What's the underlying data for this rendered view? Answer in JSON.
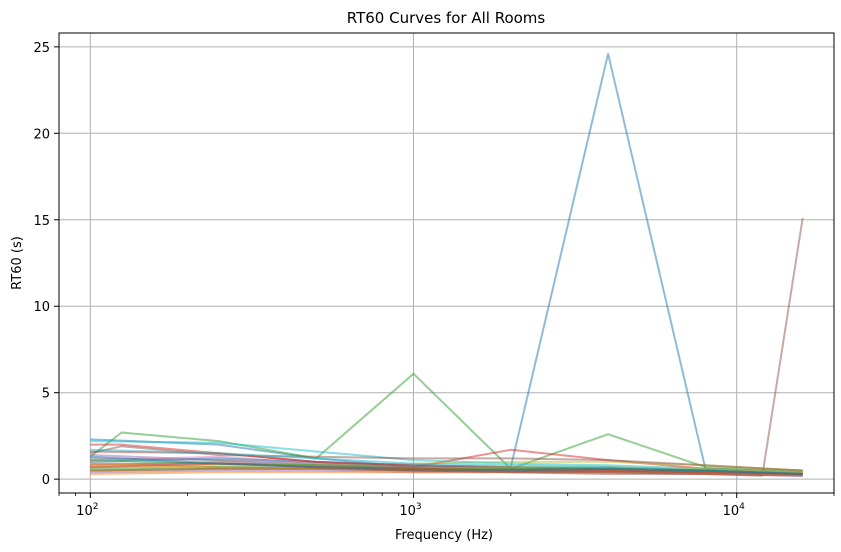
{
  "chart_data": {
    "type": "line",
    "title": "RT60 Curves for All Rooms",
    "xlabel": "Frequency (Hz)",
    "ylabel": "RT60 (s)",
    "xscale": "log",
    "xlim": [
      80,
      20000
    ],
    "ylim": [
      -0.8,
      25.8
    ],
    "grid": true,
    "x_ticks": [
      {
        "value": 100,
        "base": "10",
        "exp": "2"
      },
      {
        "value": 1000,
        "base": "10",
        "exp": "3"
      },
      {
        "value": 10000,
        "base": "10",
        "exp": "4"
      }
    ],
    "y_ticks": [
      {
        "value": 0,
        "label": "0"
      },
      {
        "value": 5,
        "label": "5"
      },
      {
        "value": 10,
        "label": "10"
      },
      {
        "value": 15,
        "label": "15"
      },
      {
        "value": 20,
        "label": "20"
      },
      {
        "value": 25,
        "label": "25"
      }
    ],
    "series": [
      {
        "color": "#1f77b4",
        "x": [
          100,
          250,
          500,
          1000,
          2000,
          4000,
          8000,
          16000
        ],
        "values": [
          2.3,
          2.0,
          1.2,
          0.7,
          0.7,
          24.6,
          0.6,
          0.4
        ]
      },
      {
        "color": "#ff7f0e",
        "x": [
          100,
          250,
          500,
          1000,
          2000,
          4000,
          8000,
          16000
        ],
        "values": [
          0.5,
          0.6,
          0.6,
          0.5,
          0.5,
          0.5,
          0.4,
          0.3
        ]
      },
      {
        "color": "#2ca02c",
        "x": [
          100,
          125,
          250,
          500,
          1000,
          2000,
          4000,
          8000,
          16000
        ],
        "values": [
          1.3,
          2.7,
          2.2,
          1.2,
          6.1,
          0.6,
          2.6,
          0.7,
          0.5
        ]
      },
      {
        "color": "#d62728",
        "x": [
          100,
          250,
          500,
          1000,
          2000,
          4000,
          8000,
          16000
        ],
        "values": [
          1.6,
          1.5,
          1.0,
          0.7,
          1.7,
          1.1,
          0.6,
          0.4
        ]
      },
      {
        "color": "#9467bd",
        "x": [
          100,
          250,
          500,
          1000,
          2000,
          4000,
          8000,
          16000
        ],
        "values": [
          1.4,
          1.1,
          0.8,
          0.6,
          0.6,
          0.7,
          0.5,
          0.3
        ]
      },
      {
        "color": "#8c564b",
        "x": [
          100,
          250,
          500,
          1000,
          2000,
          4000,
          8000,
          12000,
          16000
        ],
        "values": [
          0.8,
          1.0,
          0.7,
          0.5,
          0.4,
          0.3,
          0.3,
          0.2,
          15.1
        ]
      },
      {
        "color": "#e377c2",
        "x": [
          100,
          250,
          500,
          1000,
          2000,
          4000,
          8000,
          16000
        ],
        "values": [
          1.1,
          1.3,
          0.9,
          0.6,
          0.5,
          0.4,
          0.3,
          0.2
        ]
      },
      {
        "color": "#7f7f7f",
        "x": [
          100,
          250,
          500,
          1000,
          2000,
          4000,
          8000,
          16000
        ],
        "values": [
          0.9,
          0.9,
          0.8,
          0.7,
          0.6,
          0.6,
          0.5,
          0.3
        ]
      },
      {
        "color": "#bcbd22",
        "x": [
          100,
          250,
          500,
          1000,
          2000,
          4000,
          8000,
          16000
        ],
        "values": [
          0.7,
          0.8,
          0.8,
          0.9,
          1.0,
          1.0,
          0.8,
          0.5
        ]
      },
      {
        "color": "#17becf",
        "x": [
          100,
          250,
          500,
          1000,
          2000,
          4000,
          8000,
          16000
        ],
        "values": [
          2.2,
          2.1,
          1.6,
          1.1,
          0.9,
          0.8,
          0.6,
          0.4
        ]
      },
      {
        "color": "#1f77b4",
        "x": [
          100,
          250,
          500,
          1000,
          2000,
          4000,
          8000,
          16000
        ],
        "values": [
          1.0,
          1.2,
          1.0,
          0.8,
          0.7,
          0.6,
          0.5,
          0.3
        ]
      },
      {
        "color": "#ff7f0e",
        "x": [
          100,
          250,
          500,
          1000,
          2000,
          4000,
          8000,
          16000
        ],
        "values": [
          0.9,
          0.7,
          0.6,
          0.5,
          0.5,
          0.4,
          0.4,
          0.3
        ]
      },
      {
        "color": "#2ca02c",
        "x": [
          100,
          250,
          500,
          1000,
          2000,
          4000,
          8000,
          16000
        ],
        "values": [
          0.6,
          0.7,
          0.7,
          0.6,
          0.5,
          0.5,
          0.4,
          0.3
        ]
      },
      {
        "color": "#d62728",
        "x": [
          100,
          125,
          250,
          500,
          1000,
          2000,
          4000,
          8000,
          16000
        ],
        "values": [
          2.0,
          2.0,
          1.5,
          1.0,
          0.8,
          0.7,
          0.6,
          0.5,
          0.3
        ]
      },
      {
        "color": "#9467bd",
        "x": [
          100,
          250,
          500,
          1000,
          2000,
          4000,
          8000,
          16000
        ],
        "values": [
          0.4,
          0.5,
          0.5,
          0.4,
          0.4,
          0.4,
          0.3,
          0.2
        ]
      },
      {
        "color": "#8c564b",
        "x": [
          100,
          125,
          250,
          500,
          1000,
          2000,
          4000,
          8000,
          16000
        ],
        "values": [
          1.5,
          1.9,
          1.4,
          1.3,
          1.2,
          1.2,
          1.1,
          0.8,
          0.5
        ]
      },
      {
        "color": "#7f7f7f",
        "x": [
          100,
          250,
          500,
          1000,
          2000,
          4000,
          8000,
          16000
        ],
        "values": [
          1.2,
          1.1,
          0.9,
          0.7,
          0.6,
          0.5,
          0.4,
          0.3
        ]
      },
      {
        "color": "#bcbd22",
        "x": [
          100,
          250,
          500,
          1000,
          2000,
          4000,
          8000,
          16000
        ],
        "values": [
          0.5,
          0.6,
          0.6,
          0.6,
          0.7,
          0.7,
          0.6,
          0.4
        ]
      },
      {
        "color": "#17becf",
        "x": [
          100,
          250,
          500,
          1000,
          2000,
          4000,
          8000,
          16000
        ],
        "values": [
          1.7,
          1.5,
          1.2,
          0.9,
          0.8,
          0.7,
          0.5,
          0.3
        ]
      },
      {
        "color": "#ff7f0e",
        "x": [
          100,
          250,
          500,
          1000,
          2000,
          4000,
          8000,
          16000
        ],
        "values": [
          0.3,
          0.4,
          0.4,
          0.4,
          0.4,
          0.4,
          0.3,
          0.3
        ]
      },
      {
        "color": "#2ca02c",
        "x": [
          100,
          250,
          500,
          1000,
          2000,
          4000,
          8000,
          16000
        ],
        "values": [
          1.1,
          0.9,
          0.8,
          0.6,
          0.6,
          0.6,
          0.5,
          0.3
        ]
      },
      {
        "color": "#d62728",
        "x": [
          100,
          250,
          500,
          1000,
          2000,
          4000,
          8000,
          16000
        ],
        "values": [
          0.7,
          0.9,
          0.7,
          0.6,
          0.5,
          0.5,
          0.4,
          0.3
        ]
      },
      {
        "color": "#1f77b4",
        "x": [
          100,
          250,
          500,
          1000,
          2000,
          4000,
          8000,
          16000
        ],
        "values": [
          1.3,
          0.9,
          0.7,
          0.5,
          0.5,
          0.6,
          0.5,
          0.3
        ]
      },
      {
        "color": "#8c564b",
        "x": [
          100,
          250,
          500,
          1000,
          2000,
          4000,
          8000,
          16000
        ],
        "values": [
          0.5,
          0.6,
          0.6,
          0.5,
          0.4,
          0.4,
          0.3,
          0.2
        ]
      }
    ]
  }
}
